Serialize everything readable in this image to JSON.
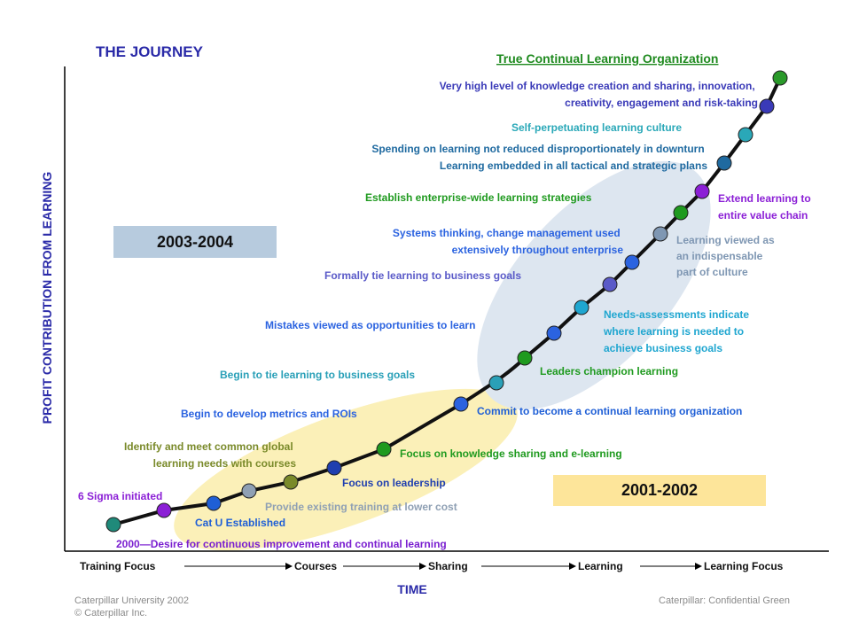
{
  "title": "THE JOURNEY",
  "top_goal": "True Continual Learning Organization",
  "y_axis_label": "PROFIT CONTRIBUTION FROM LEARNING",
  "x_axis_label": "TIME",
  "x_stages": [
    "Training Focus",
    "Courses",
    "Sharing",
    "Learning",
    "Learning Focus"
  ],
  "period_boxes": {
    "later": "2003-2004",
    "earlier": "2001-2002"
  },
  "milestones": [
    {
      "name": "six-sigma",
      "lines": [
        "6 Sigma initiated"
      ],
      "color": "#8b1fd6"
    },
    {
      "name": "desire-improvement",
      "lines": [
        "2000—Desire for continuous improvement and continual learning"
      ],
      "color": "#7a1fd0"
    },
    {
      "name": "cat-u",
      "lines": [
        "Cat U Established"
      ],
      "color": "#1f5fd6"
    },
    {
      "name": "common-global",
      "lines": [
        "Identify and meet common global",
        "learning needs with courses"
      ],
      "color": "#7a8a2a"
    },
    {
      "name": "existing-training",
      "lines": [
        "Provide existing training at lower cost"
      ],
      "color": "#8fa0b4"
    },
    {
      "name": "leadership",
      "lines": [
        "Focus on leadership"
      ],
      "color": "#1f3fb0"
    },
    {
      "name": "knowledge-sharing",
      "lines": [
        "Focus on knowledge sharing and e-learning"
      ],
      "color": "#1f9a1f"
    },
    {
      "name": "metrics",
      "lines": [
        "Begin to develop metrics and ROIs"
      ],
      "color": "#2b63e0"
    },
    {
      "name": "commit",
      "lines": [
        "Commit to become a continual learning organization"
      ],
      "color": "#1f5fd6"
    },
    {
      "name": "tie-begin",
      "lines": [
        "Begin to tie learning to business goals"
      ],
      "color": "#2aa0b8"
    },
    {
      "name": "leaders-champion",
      "lines": [
        "Leaders champion learning"
      ],
      "color": "#1f9a1f"
    },
    {
      "name": "mistakes",
      "lines": [
        "Mistakes viewed as opportunities to learn"
      ],
      "color": "#2b63e0"
    },
    {
      "name": "needs-assessments",
      "lines": [
        "Needs-assessments indicate",
        "where learning is needed to",
        "achieve business goals"
      ],
      "color": "#1fa6d0"
    },
    {
      "name": "formally-tie",
      "lines": [
        "Formally tie learning to business goals"
      ],
      "color": "#5a5ac8"
    },
    {
      "name": "systems-thinking",
      "lines": [
        "Systems thinking, change management used",
        "extensively throughout enterprise"
      ],
      "color": "#2b63e0"
    },
    {
      "name": "indispensable",
      "lines": [
        "Learning viewed as",
        "an indispensable",
        "part of culture"
      ],
      "color": "#7f97b3"
    },
    {
      "name": "enterprise-wide",
      "lines": [
        "Establish enterprise-wide learning strategies"
      ],
      "color": "#1f9a1f"
    },
    {
      "name": "value-chain",
      "lines": [
        "Extend learning to",
        "entire value chain"
      ],
      "color": "#8b1fd6"
    },
    {
      "name": "spending",
      "lines": [
        "Spending on learning not reduced disproportionately in downturn",
        "Learning embedded in all tactical and strategic plans"
      ],
      "color": "#1f6aa0"
    },
    {
      "name": "self-perpetuating",
      "lines": [
        "Self-perpetuating learning culture"
      ],
      "color": "#2aa8b8"
    },
    {
      "name": "very-high",
      "lines": [
        "Very high level of knowledge creation and sharing, innovation,",
        "creativity, engagement and risk-taking"
      ],
      "color": "#3a3ab8"
    }
  ],
  "footer": {
    "left_line1": "Caterpillar University 2002",
    "left_line2": "© Caterpillar Inc.",
    "right": "Caterpillar: Confidential Green"
  },
  "colors": {
    "title": "#2a2aa8",
    "goal": "#1f8a1f",
    "axis_label": "#2a2aa8",
    "curve": "#111111",
    "early_ellipse": "#fbf0b8",
    "late_ellipse": "#dde6f0",
    "later_box": "#b7cbde",
    "earlier_box": "#fde59a",
    "start_dot": "#1f8a7a",
    "end_dot": "#2a9a2a"
  }
}
